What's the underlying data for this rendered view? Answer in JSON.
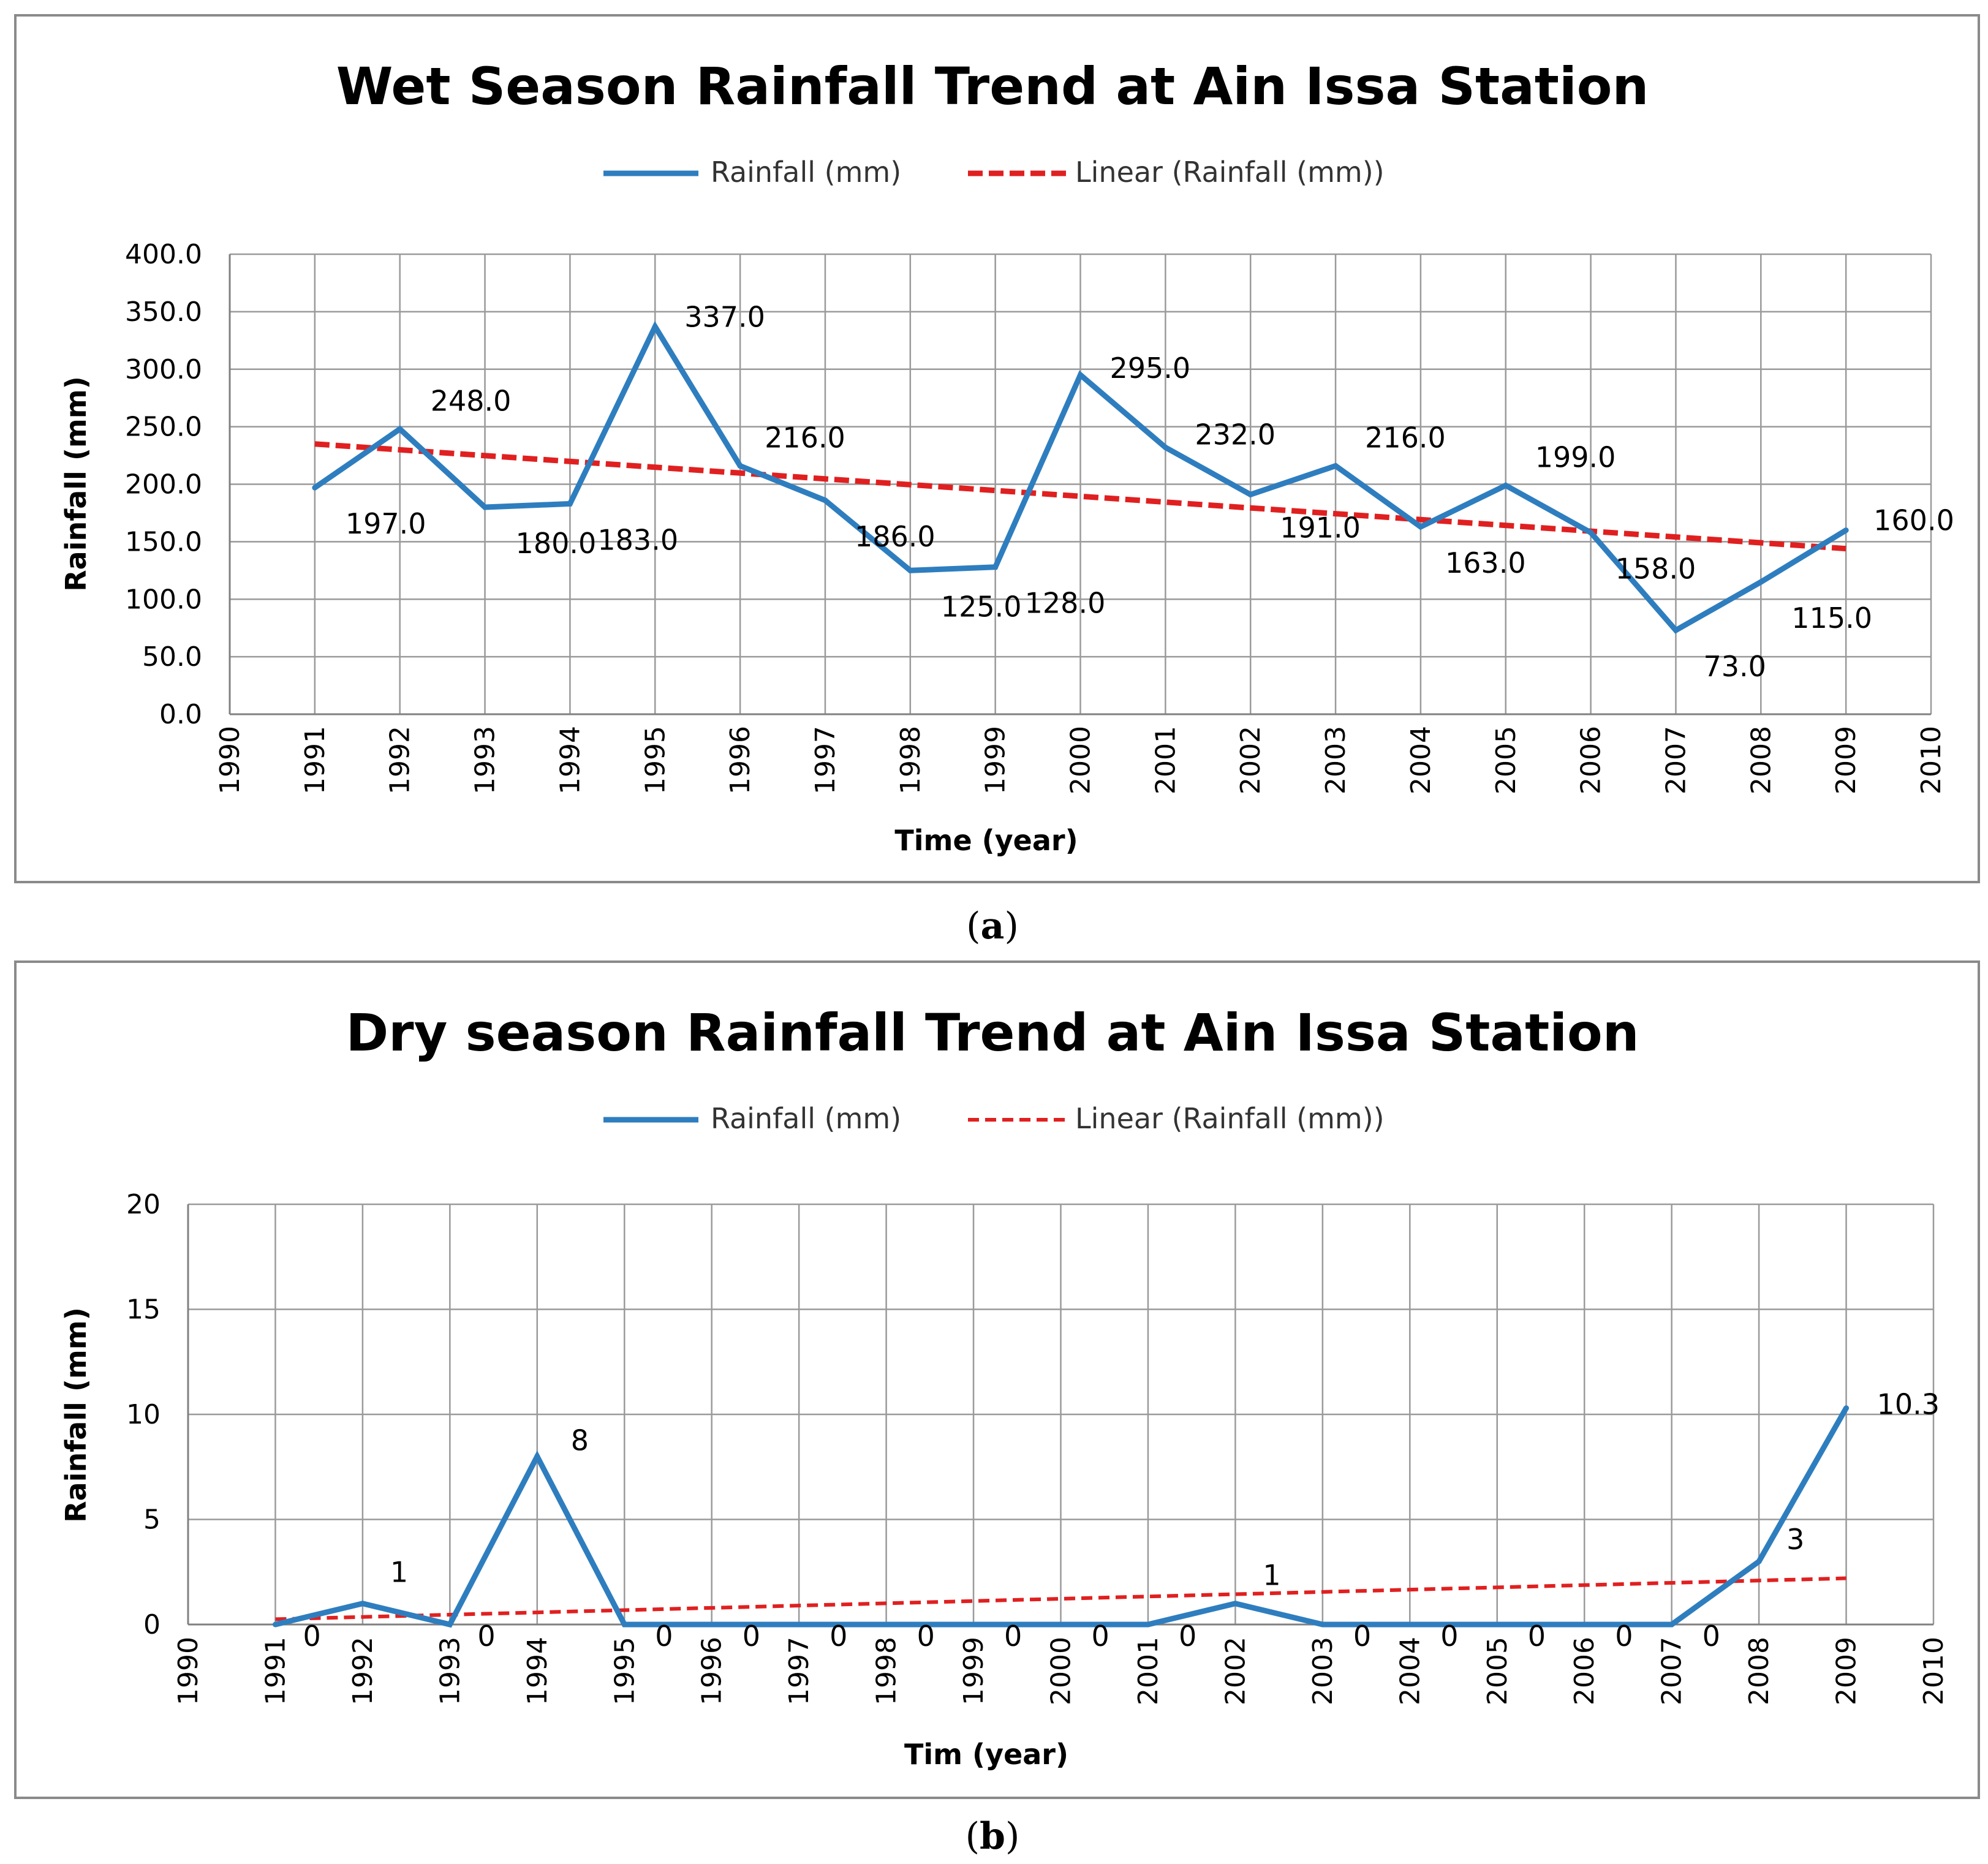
{
  "chart_data": [
    {
      "type": "line",
      "title": "Wet Season Rainfall Trend at Ain Issa Station",
      "xlabel": "Time (year)",
      "ylabel": "Rainfall (mm)",
      "xlim": [
        1990,
        2010
      ],
      "ylim": [
        0,
        400
      ],
      "x_ticks": [
        "1990",
        "1991",
        "1992",
        "1993",
        "1994",
        "1995",
        "1996",
        "1997",
        "1998",
        "1999",
        "2000",
        "2001",
        "2002",
        "2003",
        "2004",
        "2005",
        "2006",
        "2007",
        "2008",
        "2009",
        "2010"
      ],
      "y_ticks": [
        "0.0",
        "50.0",
        "100.0",
        "150.0",
        "200.0",
        "250.0",
        "300.0",
        "350.0",
        "400.0"
      ],
      "grid": true,
      "legend_position": "top",
      "caption_letter": "a",
      "series": [
        {
          "name": "Rainfall (mm)",
          "color": "#2E7EBF",
          "x": [
            1991,
            1992,
            1993,
            1994,
            1995,
            1996,
            1997,
            1998,
            1999,
            2000,
            2001,
            2002,
            2003,
            2004,
            2005,
            2006,
            2007,
            2008,
            2009
          ],
          "values": [
            197.0,
            248.0,
            180.0,
            183.0,
            337.0,
            216.0,
            186.0,
            125.0,
            128.0,
            295.0,
            232.0,
            191.0,
            216.0,
            163.0,
            199.0,
            158.0,
            73.0,
            115.0,
            160.0
          ],
          "labels": [
            "197.0",
            "248.0",
            "180.0",
            "183.0",
            "337.0",
            "216.0",
            "186.0",
            "125.0",
            "128.0",
            "295.0",
            "232.0",
            "191.0",
            "216.0",
            "163.0",
            "199.0",
            "158.0",
            "73.0",
            "115.0",
            "160.0"
          ]
        },
        {
          "name": "Linear (Rainfall (mm))",
          "color": "#E02020",
          "style": "dashed",
          "x": [
            1991,
            2009
          ],
          "values": [
            235.0,
            144.0
          ]
        }
      ]
    },
    {
      "type": "line",
      "title": "Dry season Rainfall Trend at Ain Issa Station",
      "xlabel": "Tim (year)",
      "ylabel": "Rainfall (mm)",
      "xlim": [
        1990,
        2010
      ],
      "ylim": [
        0,
        20
      ],
      "x_ticks": [
        "1990",
        "1991",
        "1992",
        "1993",
        "1994",
        "1995",
        "1996",
        "1997",
        "1998",
        "1999",
        "2000",
        "2001",
        "2002",
        "2003",
        "2004",
        "2005",
        "2006",
        "2007",
        "2008",
        "2009",
        "2010"
      ],
      "y_ticks": [
        "0",
        "5",
        "10",
        "15",
        "20"
      ],
      "grid": true,
      "legend_position": "top",
      "caption_letter": "b",
      "series": [
        {
          "name": "Rainfall (mm)",
          "color": "#2E7EBF",
          "x": [
            1991,
            1992,
            1993,
            1994,
            1995,
            1996,
            1997,
            1998,
            1999,
            2000,
            2001,
            2002,
            2003,
            2004,
            2005,
            2006,
            2007,
            2008,
            2009
          ],
          "values": [
            0,
            1,
            0,
            8,
            0,
            0,
            0,
            0,
            0,
            0,
            0,
            1,
            0,
            0,
            0,
            0,
            0,
            3,
            10.3
          ],
          "labels": [
            "0",
            "1",
            "0",
            "8",
            "0",
            "0",
            "0",
            "0",
            "0",
            "0",
            "0",
            "1",
            "0",
            "0",
            "0",
            "0",
            "0",
            "3",
            "10.3"
          ]
        },
        {
          "name": "Linear (Rainfall (mm))",
          "color": "#E02020",
          "style": "dashed",
          "x": [
            1991,
            2009
          ],
          "values": [
            0.25,
            2.2
          ]
        }
      ]
    }
  ]
}
